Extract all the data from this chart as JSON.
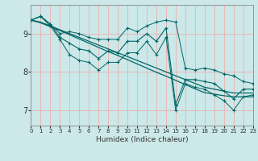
{
  "xlabel": "Humidex (Indice chaleur)",
  "ylabel": "",
  "bg_color": "#cce8e8",
  "grid_color": "#e8b8b8",
  "line_color": "#006666",
  "x_data": [
    0,
    1,
    2,
    3,
    4,
    5,
    6,
    7,
    8,
    9,
    10,
    11,
    12,
    13,
    14,
    15,
    16,
    17,
    18,
    19,
    20,
    21,
    22,
    23
  ],
  "y_main": [
    9.35,
    9.45,
    9.25,
    8.9,
    8.75,
    8.6,
    8.55,
    8.35,
    8.55,
    8.5,
    8.8,
    8.8,
    9.0,
    8.8,
    9.15,
    7.15,
    7.8,
    7.8,
    7.75,
    7.7,
    7.5,
    7.3,
    7.55,
    7.55
  ],
  "y_upper": [
    9.35,
    9.45,
    9.25,
    9.0,
    9.05,
    9.0,
    8.9,
    8.85,
    8.85,
    8.85,
    9.15,
    9.05,
    9.2,
    9.3,
    9.35,
    9.3,
    8.1,
    8.05,
    8.1,
    8.05,
    7.95,
    7.9,
    7.75,
    7.7
  ],
  "y_lower": [
    9.35,
    9.45,
    9.2,
    8.85,
    8.45,
    8.3,
    8.25,
    8.05,
    8.25,
    8.25,
    8.5,
    8.5,
    8.8,
    8.45,
    8.9,
    7.0,
    7.7,
    7.6,
    7.55,
    7.4,
    7.25,
    7.0,
    7.35,
    7.4
  ],
  "y_trend_upper": [
    9.35,
    9.3,
    9.2,
    9.1,
    9.0,
    8.9,
    8.8,
    8.7,
    8.6,
    8.5,
    8.4,
    8.3,
    8.2,
    8.1,
    8.0,
    7.9,
    7.8,
    7.7,
    7.6,
    7.55,
    7.5,
    7.45,
    7.45,
    7.45
  ],
  "y_trend_lower": [
    9.35,
    9.28,
    9.18,
    9.08,
    8.97,
    8.86,
    8.75,
    8.64,
    8.53,
    8.43,
    8.32,
    8.21,
    8.1,
    7.99,
    7.89,
    7.78,
    7.67,
    7.56,
    7.46,
    7.42,
    7.38,
    7.35,
    7.35,
    7.35
  ],
  "ylim": [
    6.6,
    9.75
  ],
  "yticks": [
    7,
    8,
    9
  ],
  "xlim": [
    0,
    23
  ],
  "xticks": [
    0,
    1,
    2,
    3,
    4,
    5,
    6,
    7,
    8,
    9,
    10,
    11,
    12,
    13,
    14,
    15,
    16,
    17,
    18,
    19,
    20,
    21,
    22,
    23
  ]
}
